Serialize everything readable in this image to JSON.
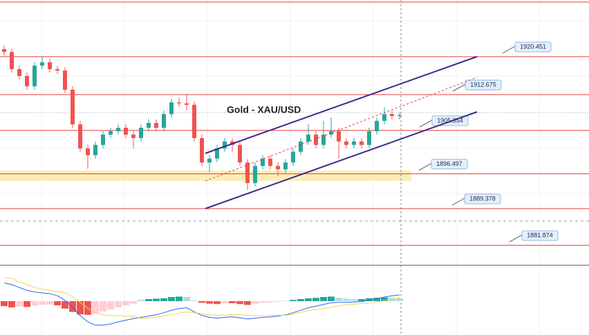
{
  "chart_data": {
    "type": "candlestick",
    "title": "Gold - XAU/USD",
    "levels": [
      1920.451,
      1912.675,
      1905.354,
      1896.497,
      1889.378,
      1881.874
    ],
    "ohlc": [
      [
        1922.0,
        1922.7,
        1920.7,
        1921.4
      ],
      [
        1921.4,
        1922.1,
        1917.2,
        1917.9
      ],
      [
        1917.9,
        1918.6,
        1915.8,
        1916.5
      ],
      [
        1916.5,
        1917.2,
        1913.7,
        1914.4
      ],
      [
        1914.4,
        1919.3,
        1913.7,
        1918.6
      ],
      [
        1918.6,
        1920.5,
        1917.9,
        1919.3
      ],
      [
        1919.3,
        1920.0,
        1917.2,
        1917.9
      ],
      [
        1917.9,
        1918.6,
        1916.9,
        1917.6
      ],
      [
        1917.6,
        1918.3,
        1913.0,
        1913.7
      ],
      [
        1913.7,
        1914.4,
        1905.9,
        1906.6
      ],
      [
        1906.6,
        1907.3,
        1901.0,
        1901.7
      ],
      [
        1901.7,
        1902.4,
        1897.5,
        1900.3
      ],
      [
        1900.3,
        1903.1,
        1899.6,
        1902.4
      ],
      [
        1902.4,
        1905.2,
        1901.7,
        1904.5
      ],
      [
        1904.5,
        1905.9,
        1903.8,
        1905.2
      ],
      [
        1905.2,
        1906.6,
        1904.5,
        1905.9
      ],
      [
        1905.9,
        1906.6,
        1903.8,
        1904.5
      ],
      [
        1904.5,
        1905.2,
        1901.7,
        1903.8
      ],
      [
        1903.8,
        1906.6,
        1903.1,
        1905.9
      ],
      [
        1905.9,
        1907.6,
        1905.2,
        1906.9
      ],
      [
        1906.9,
        1907.6,
        1905.2,
        1905.9
      ],
      [
        1905.9,
        1909.4,
        1905.2,
        1908.7
      ],
      [
        1908.7,
        1911.8,
        1908.0,
        1911.1
      ],
      [
        1911.1,
        1912.0,
        1910.2,
        1910.9
      ],
      [
        1910.9,
        1912.7,
        1909.5,
        1910.6
      ],
      [
        1910.6,
        1911.3,
        1903.1,
        1903.8
      ],
      [
        1903.8,
        1904.5,
        1898.1,
        1898.8
      ],
      [
        1898.8,
        1900.3,
        1896.8,
        1899.6
      ],
      [
        1899.6,
        1902.4,
        1898.9,
        1901.7
      ],
      [
        1901.7,
        1903.8,
        1901.0,
        1903.1
      ],
      [
        1903.1,
        1903.8,
        1901.0,
        1902.4
      ],
      [
        1902.4,
        1903.1,
        1898.1,
        1898.8
      ],
      [
        1898.8,
        1899.5,
        1893.2,
        1894.6
      ],
      [
        1894.6,
        1898.8,
        1893.9,
        1898.1
      ],
      [
        1898.1,
        1900.3,
        1897.4,
        1899.6
      ],
      [
        1899.6,
        1900.3,
        1897.4,
        1898.1
      ],
      [
        1898.1,
        1898.8,
        1896.0,
        1897.4
      ],
      [
        1897.4,
        1899.5,
        1896.7,
        1898.8
      ],
      [
        1898.8,
        1901.7,
        1898.1,
        1901.0
      ],
      [
        1901.0,
        1903.8,
        1900.3,
        1903.1
      ],
      [
        1903.1,
        1906.6,
        1902.4,
        1904.5
      ],
      [
        1904.5,
        1905.2,
        1901.7,
        1902.4
      ],
      [
        1902.4,
        1907.3,
        1901.7,
        1904.5
      ],
      [
        1904.5,
        1908.0,
        1903.8,
        1905.2
      ],
      [
        1905.2,
        1905.9,
        1899.6,
        1903.1
      ],
      [
        1903.1,
        1903.8,
        1901.7,
        1902.4
      ],
      [
        1902.4,
        1903.8,
        1901.7,
        1903.1
      ],
      [
        1903.1,
        1903.8,
        1901.7,
        1902.4
      ],
      [
        1902.4,
        1905.9,
        1901.7,
        1905.2
      ],
      [
        1905.2,
        1908.0,
        1904.5,
        1907.3
      ],
      [
        1907.3,
        1910.1,
        1906.6,
        1908.7
      ],
      [
        1908.7,
        1909.4,
        1907.6,
        1908.3
      ],
      [
        1908.3,
        1909.0,
        1907.6,
        1908.5
      ]
    ],
    "histogram": [
      -1.2,
      -1.5,
      -1.3,
      -1.4,
      -1.1,
      -0.9,
      -0.8,
      -1.0,
      -1.8,
      -2.6,
      -3.2,
      -3.3,
      -3.0,
      -2.5,
      -2.0,
      -1.5,
      -1.0,
      -0.6,
      0.3,
      0.5,
      0.6,
      0.7,
      1.0,
      1.1,
      1.0,
      0.2,
      -0.4,
      -0.6,
      -0.7,
      -0.5,
      -0.5,
      -0.7,
      -0.9,
      -0.6,
      -0.4,
      -0.3,
      -0.2,
      0.1,
      0.3,
      0.5,
      0.7,
      0.8,
      1.0,
      1.1,
      0.8,
      0.6,
      0.5,
      0.5,
      0.7,
      0.8,
      0.9,
      0.8,
      0.7
    ],
    "macd": [
      4.4,
      4.0,
      3.3,
      2.6,
      2.2,
      2.0,
      1.8,
      1.3,
      0.2,
      -1.5,
      -3.5,
      -5.0,
      -5.8,
      -5.8,
      -5.5,
      -5.0,
      -4.6,
      -4.2,
      -3.9,
      -3.6,
      -3.3,
      -2.8,
      -2.2,
      -1.8,
      -1.6,
      -2.6,
      -3.4,
      -3.9,
      -4.1,
      -3.9,
      -3.8,
      -4.0,
      -4.3,
      -4.1,
      -3.9,
      -3.8,
      -3.6,
      -3.3,
      -2.8,
      -2.2,
      -1.6,
      -1.2,
      -0.8,
      -0.4,
      -0.3,
      -0.3,
      -0.2,
      -0.1,
      0.2,
      0.6,
      1.0,
      1.3,
      1.5
    ],
    "signal": [
      5.6,
      5.5,
      4.6,
      4.0,
      3.3,
      2.9,
      2.6,
      2.3,
      2.0,
      1.1,
      -0.3,
      -1.7,
      -2.8,
      -3.3,
      -3.5,
      -3.5,
      -3.6,
      -3.6,
      -4.2,
      -4.1,
      -3.9,
      -3.5,
      -3.2,
      -2.9,
      -2.6,
      -2.8,
      -3.0,
      -3.3,
      -3.4,
      -3.4,
      -3.3,
      -3.3,
      -3.4,
      -3.5,
      -3.5,
      -3.5,
      -3.4,
      -3.4,
      -3.1,
      -2.7,
      -2.3,
      -2.0,
      -1.8,
      -1.5,
      -1.1,
      -0.9,
      -0.7,
      -0.6,
      -0.5,
      -0.2,
      0.1,
      0.5,
      0.8
    ],
    "up_color": "#26a69a",
    "down_color": "#ef5350",
    "level_color": "#e53935",
    "macd_color": "#2962ff",
    "signal_color": "#f5d547"
  }
}
